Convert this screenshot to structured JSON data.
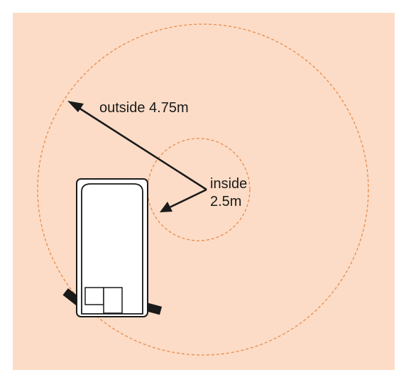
{
  "colors": {
    "panel_background": "#fcdcc6",
    "circle_stroke": "#e98a4c",
    "arrow": "#1a1a1a",
    "vehicle_fill": "#ffffff",
    "vehicle_stroke": "#1a1a1a"
  },
  "labels": {
    "outside": "outside 4.75m",
    "inside_word": "inside",
    "inside_value": "2.5m"
  },
  "turning_circles": [
    {
      "name": "inside",
      "radius_m": 2.5
    },
    {
      "name": "outside",
      "radius_m": 4.75
    }
  ],
  "icons": [
    "vehicle-top-view-icon",
    "arrowhead-icon"
  ]
}
